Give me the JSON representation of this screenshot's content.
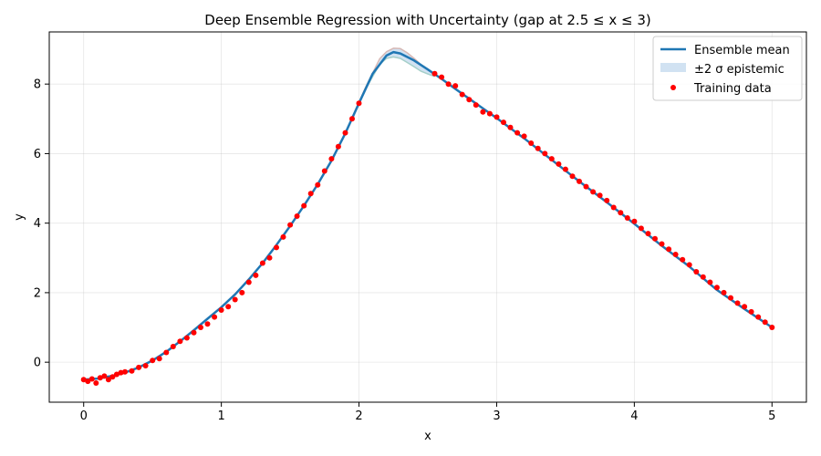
{
  "chart_data": {
    "type": "scatter",
    "title": "Deep Ensemble Regression with Uncertainty (gap at 2.5 ≤ x ≤ 3)",
    "xlabel": "x",
    "ylabel": "y",
    "xlim": [
      -0.25,
      5.25
    ],
    "ylim": [
      -1.15,
      9.5
    ],
    "xticks": [
      0,
      1,
      2,
      3,
      4,
      5
    ],
    "yticks": [
      0,
      2,
      4,
      6,
      8
    ],
    "grid": true,
    "legend_position": "upper right",
    "colors": {
      "mean": "#1f77b4",
      "band": "#c6dbef",
      "points": "#ff0000",
      "member_a": "#d9a79b",
      "member_b": "#93c7b8"
    },
    "series": [
      {
        "name": "Ensemble mean",
        "kind": "line",
        "x": [
          0,
          0.1,
          0.2,
          0.3,
          0.4,
          0.5,
          0.6,
          0.7,
          0.8,
          0.9,
          1.0,
          1.1,
          1.2,
          1.3,
          1.4,
          1.5,
          1.6,
          1.7,
          1.8,
          1.9,
          2.0,
          2.1,
          2.2,
          2.25,
          2.3,
          2.4,
          2.5,
          2.6,
          2.7,
          2.8,
          2.9,
          3.0,
          3.2,
          3.4,
          3.6,
          3.8,
          4.0,
          4.2,
          4.4,
          4.6,
          4.8,
          5.0
        ],
        "y": [
          -0.5,
          -0.47,
          -0.4,
          -0.3,
          -0.15,
          0.05,
          0.3,
          0.6,
          0.92,
          1.25,
          1.58,
          1.95,
          2.38,
          2.85,
          3.37,
          3.92,
          4.5,
          5.12,
          5.8,
          6.58,
          7.45,
          8.3,
          8.82,
          8.92,
          8.88,
          8.68,
          8.42,
          8.15,
          7.86,
          7.58,
          7.3,
          7.02,
          6.44,
          5.82,
          5.2,
          4.6,
          3.98,
          3.35,
          2.75,
          2.08,
          1.53,
          1.0
        ]
      },
      {
        "name": "±2 σ epistemic",
        "kind": "band",
        "x": [
          1.95,
          2.05,
          2.15,
          2.2,
          2.25,
          2.3,
          2.35,
          2.4,
          2.45,
          2.5,
          2.55
        ],
        "lower": [
          7.0,
          7.85,
          8.55,
          8.72,
          8.76,
          8.72,
          8.6,
          8.48,
          8.35,
          8.27,
          8.2
        ],
        "upper": [
          7.06,
          7.95,
          8.75,
          8.95,
          9.05,
          9.04,
          8.92,
          8.76,
          8.58,
          8.45,
          8.3
        ]
      },
      {
        "name": "Training data",
        "kind": "scatter",
        "x": [
          0.0,
          0.03,
          0.06,
          0.09,
          0.12,
          0.15,
          0.18,
          0.21,
          0.24,
          0.27,
          0.3,
          0.35,
          0.4,
          0.45,
          0.5,
          0.55,
          0.6,
          0.65,
          0.7,
          0.75,
          0.8,
          0.85,
          0.9,
          0.95,
          1.0,
          1.05,
          1.1,
          1.15,
          1.2,
          1.25,
          1.3,
          1.35,
          1.4,
          1.45,
          1.5,
          1.55,
          1.6,
          1.65,
          1.7,
          1.75,
          1.8,
          1.85,
          1.9,
          1.95,
          2.0,
          2.55,
          2.6,
          2.65,
          2.7,
          2.75,
          2.8,
          2.85,
          2.9,
          2.95,
          3.0,
          3.05,
          3.1,
          3.15,
          3.2,
          3.25,
          3.3,
          3.35,
          3.4,
          3.45,
          3.5,
          3.55,
          3.6,
          3.65,
          3.7,
          3.75,
          3.8,
          3.85,
          3.9,
          3.95,
          4.0,
          4.05,
          4.1,
          4.15,
          4.2,
          4.25,
          4.3,
          4.35,
          4.4,
          4.45,
          4.5,
          4.55,
          4.6,
          4.65,
          4.7,
          4.75,
          4.8,
          4.85,
          4.9,
          4.95,
          5.0
        ],
        "y": [
          -0.5,
          -0.55,
          -0.48,
          -0.6,
          -0.45,
          -0.4,
          -0.5,
          -0.42,
          -0.35,
          -0.3,
          -0.28,
          -0.25,
          -0.15,
          -0.1,
          0.05,
          0.1,
          0.28,
          0.45,
          0.6,
          0.7,
          0.85,
          1.0,
          1.1,
          1.3,
          1.5,
          1.6,
          1.8,
          2.0,
          2.3,
          2.5,
          2.85,
          3.0,
          3.3,
          3.6,
          3.95,
          4.2,
          4.5,
          4.85,
          5.1,
          5.5,
          5.85,
          6.2,
          6.6,
          7.0,
          7.45,
          8.3,
          8.2,
          8.0,
          7.95,
          7.7,
          7.55,
          7.4,
          7.2,
          7.15,
          7.05,
          6.9,
          6.75,
          6.6,
          6.5,
          6.3,
          6.15,
          6.0,
          5.85,
          5.7,
          5.55,
          5.35,
          5.2,
          5.05,
          4.9,
          4.8,
          4.65,
          4.45,
          4.3,
          4.15,
          4.05,
          3.85,
          3.7,
          3.55,
          3.4,
          3.25,
          3.1,
          2.95,
          2.8,
          2.6,
          2.45,
          2.3,
          2.15,
          2.0,
          1.85,
          1.7,
          1.6,
          1.45,
          1.3,
          1.15,
          1.0
        ]
      }
    ]
  }
}
